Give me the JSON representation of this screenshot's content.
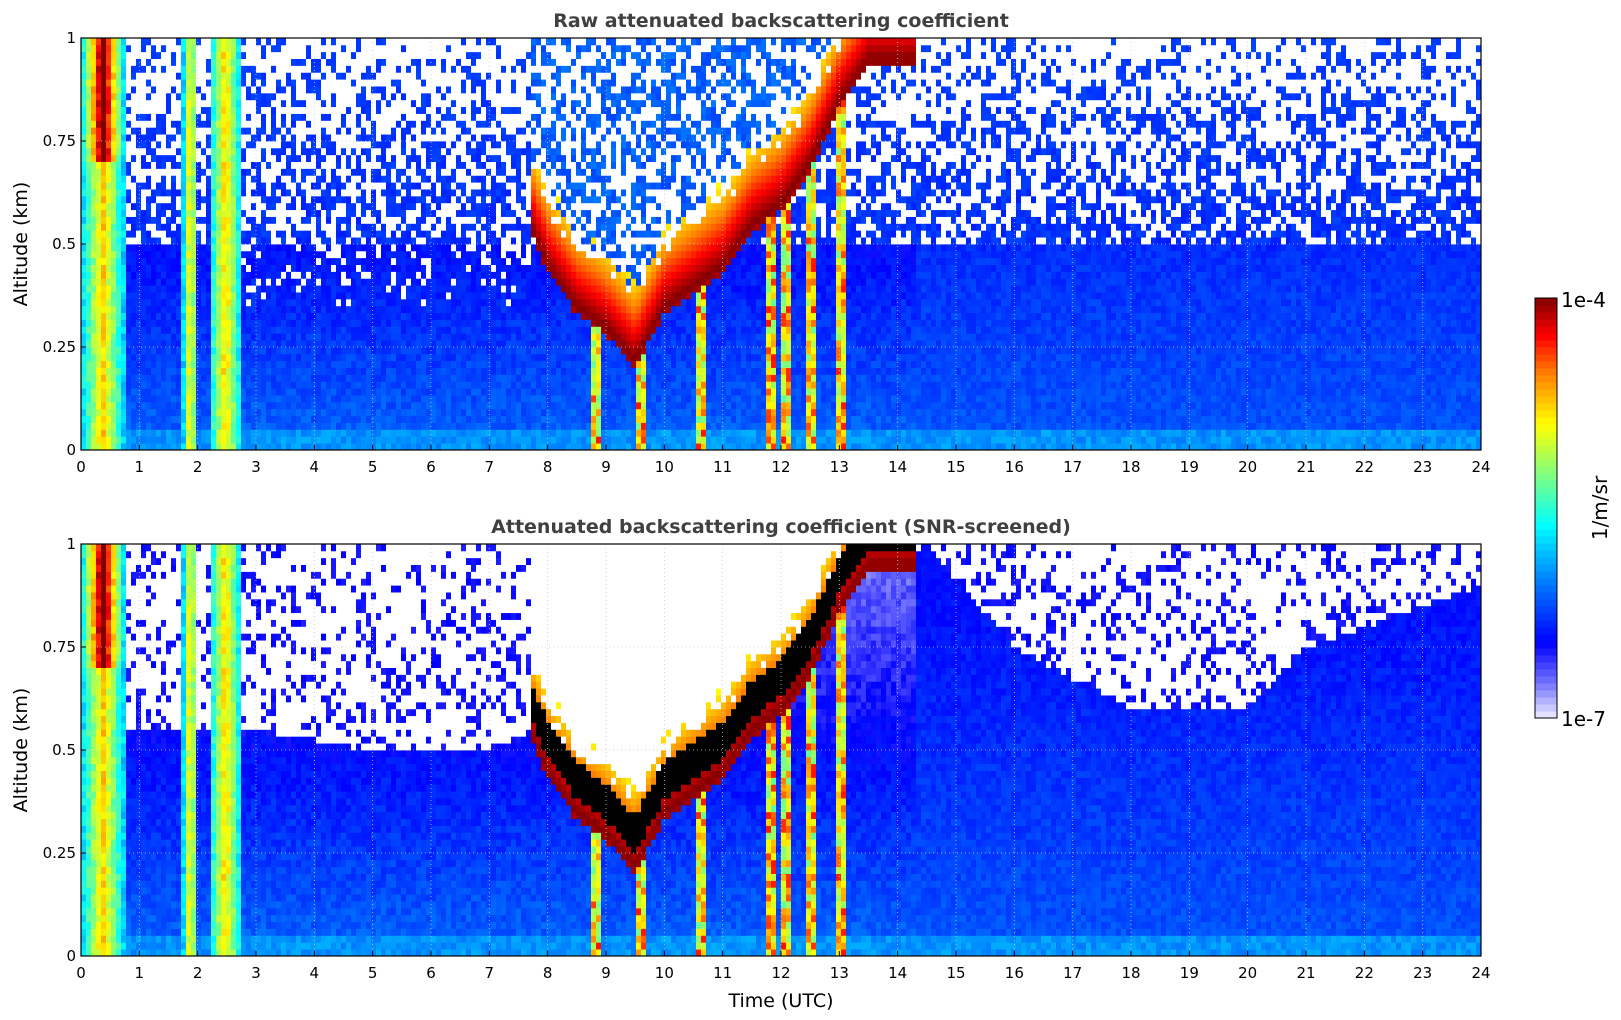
{
  "chart_data": [
    {
      "type": "heatmap",
      "title": "Raw attenuated backscattering coefficient",
      "xlabel": "",
      "ylabel": "Altitude (km)",
      "xlim": [
        0,
        24
      ],
      "ylim": [
        0,
        1
      ],
      "xticks": [
        "0",
        "1",
        "2",
        "3",
        "4",
        "5",
        "6",
        "7",
        "8",
        "9",
        "10",
        "11",
        "12",
        "13",
        "14",
        "15",
        "16",
        "17",
        "18",
        "19",
        "20",
        "21",
        "22",
        "23",
        "24"
      ],
      "yticks": [
        "0",
        "0.25",
        "0.5",
        "0.75",
        "1"
      ],
      "grid": true,
      "screening": "none",
      "features": {
        "fog_bands_utc": [
          [
            0.0,
            0.75
          ],
          [
            1.75,
            2.0
          ],
          [
            2.2,
            2.75
          ]
        ],
        "low_cloud_base_km": [
          [
            7.7,
            0.55
          ],
          [
            8.0,
            0.45
          ],
          [
            8.5,
            0.35
          ],
          [
            9.0,
            0.3
          ],
          [
            9.5,
            0.22
          ],
          [
            10.0,
            0.35
          ],
          [
            10.5,
            0.4
          ],
          [
            11.0,
            0.45
          ],
          [
            11.5,
            0.55
          ],
          [
            12.0,
            0.6
          ],
          [
            12.5,
            0.7
          ],
          [
            13.0,
            0.85
          ],
          [
            13.5,
            0.95
          ]
        ],
        "precip_columns_utc": [
          8.8,
          9.6,
          10.6,
          11.8,
          12.1,
          12.5,
          13.0
        ],
        "boundary_layer_top_km": 0.5
      }
    },
    {
      "type": "heatmap",
      "title": "Attenuated backscattering coefficient (SNR-screened)",
      "xlabel": "Time (UTC)",
      "ylabel": "Altitude (km)",
      "xlim": [
        0,
        24
      ],
      "ylim": [
        0,
        1
      ],
      "xticks": [
        "0",
        "1",
        "2",
        "3",
        "4",
        "5",
        "6",
        "7",
        "8",
        "9",
        "10",
        "11",
        "12",
        "13",
        "14",
        "15",
        "16",
        "17",
        "18",
        "19",
        "20",
        "21",
        "22",
        "23",
        "24"
      ],
      "yticks": [
        "0",
        "0.25",
        "0.5",
        "0.75",
        "1"
      ],
      "grid": true,
      "screening": "SNR",
      "features": {
        "fog_bands_utc": [
          [
            0.0,
            0.75
          ],
          [
            1.75,
            2.0
          ],
          [
            2.2,
            2.75
          ]
        ],
        "screened_top_km": [
          [
            3,
            0.55
          ],
          [
            5,
            0.5
          ],
          [
            7,
            0.5
          ],
          [
            14.5,
            1.0
          ],
          [
            16,
            0.75
          ],
          [
            18,
            0.6
          ],
          [
            20,
            0.6
          ],
          [
            21,
            0.75
          ],
          [
            24,
            0.9
          ]
        ]
      }
    }
  ],
  "colorbar": {
    "label": "1/m/sr",
    "max_label": "1e-4",
    "min_label": "1e-7",
    "scale": "log",
    "range": [
      1e-07,
      0.0001
    ],
    "colormap": "jet",
    "colors": [
      "#eeeeff",
      "#0000ff",
      "#0080ff",
      "#00ffff",
      "#80ff80",
      "#ffff00",
      "#ff8000",
      "#ff0000",
      "#800000"
    ]
  }
}
